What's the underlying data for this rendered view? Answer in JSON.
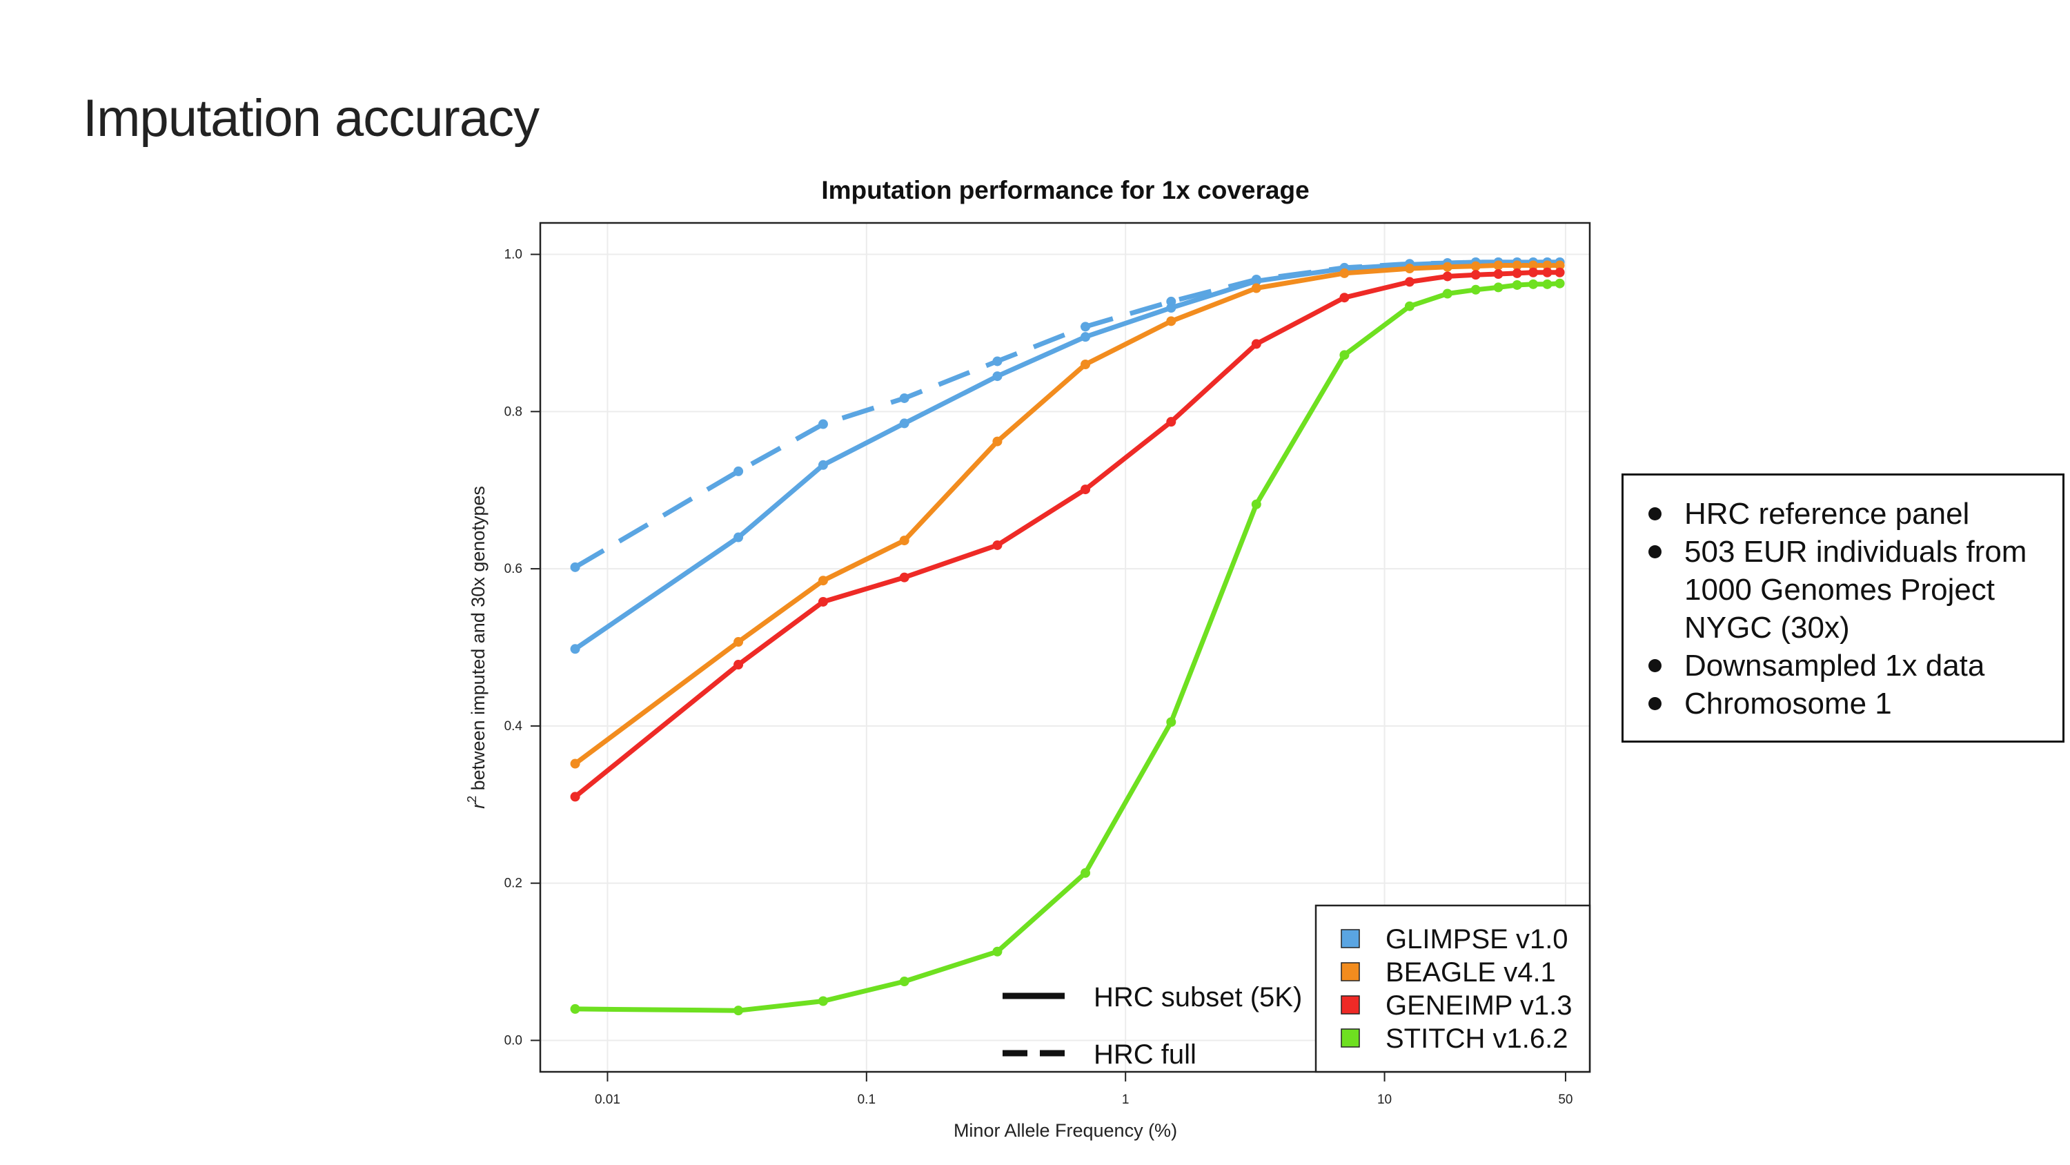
{
  "slide": {
    "title": "Imputation accuracy"
  },
  "info_box": {
    "items": [
      "HRC reference panel",
      "503 EUR individuals from 1000 Genomes Project NYGC (30x)",
      "Downsampled 1x data",
      "Chromosome 1"
    ]
  },
  "chart_data": {
    "type": "line",
    "title": "Imputation performance for 1x coverage",
    "xlabel": "Minor Allele Frequency (%)",
    "ylabel_prefix": "r",
    "ylabel_superscript": "2",
    "ylabel": " between imputed and 30x genotypes",
    "x_scale": "log",
    "xlim": [
      0.0055,
      62
    ],
    "ylim": [
      -0.04,
      1.04
    ],
    "x_ticks": [
      0.01,
      0.1,
      1,
      10,
      50
    ],
    "x_tick_labels": [
      "0.01",
      "0.1",
      "1",
      "10",
      "50"
    ],
    "y_ticks": [
      0,
      0.2,
      0.4,
      0.6,
      0.8,
      1.0
    ],
    "y_tick_labels": [
      "0.0",
      "0.2",
      "0.4",
      "0.6",
      "0.8",
      "1.0"
    ],
    "grid": true,
    "x": [
      0.0075,
      0.032,
      0.068,
      0.14,
      0.32,
      0.7,
      1.5,
      3.2,
      7,
      12.5,
      17.5,
      22.5,
      27.5,
      32.5,
      37.5,
      42.5,
      47.5
    ],
    "series": [
      {
        "name": "GLIMPSE v1.0",
        "panel": "HRC subset (5K)",
        "color": "#5aa5e2",
        "dash": false,
        "values": [
          0.498,
          0.64,
          0.732,
          0.785,
          0.845,
          0.895,
          0.932,
          0.966,
          0.982,
          0.987,
          0.989,
          0.99,
          0.99,
          0.99,
          0.99,
          0.99,
          0.99
        ]
      },
      {
        "name": "GLIMPSE v1.0",
        "panel": "HRC full",
        "color": "#5aa5e2",
        "dash": true,
        "values": [
          0.602,
          0.724,
          0.784,
          0.817,
          0.864,
          0.908,
          0.94,
          0.968,
          0.983,
          0.988,
          0.989,
          0.99,
          0.99,
          0.99,
          0.99,
          0.99,
          0.99
        ]
      },
      {
        "name": "BEAGLE v4.1",
        "panel": "HRC subset (5K)",
        "color": "#f28c1e",
        "dash": false,
        "values": [
          0.352,
          0.507,
          0.585,
          0.636,
          0.762,
          0.86,
          0.915,
          0.957,
          0.976,
          0.982,
          0.984,
          0.985,
          0.986,
          0.986,
          0.986,
          0.986,
          0.986
        ]
      },
      {
        "name": "GENEIMP v1.3",
        "panel": "HRC subset (5K)",
        "color": "#ee2a26",
        "dash": false,
        "values": [
          0.31,
          0.478,
          0.558,
          0.589,
          0.63,
          0.701,
          0.787,
          0.886,
          0.945,
          0.965,
          0.972,
          0.974,
          0.975,
          0.976,
          0.977,
          0.977,
          0.977
        ]
      },
      {
        "name": "STITCH v1.6.2",
        "panel": "HRC subset (5K)",
        "color": "#6ee020",
        "dash": false,
        "values": [
          0.04,
          0.038,
          0.05,
          0.075,
          0.113,
          0.213,
          0.405,
          0.682,
          0.872,
          0.934,
          0.95,
          0.955,
          0.958,
          0.961,
          0.962,
          0.962,
          0.963
        ]
      }
    ],
    "legend": {
      "placement": "bottom-right",
      "methods": [
        {
          "label": "GLIMPSE v1.0",
          "color": "#5aa5e2"
        },
        {
          "label": "BEAGLE v4.1",
          "color": "#f28c1e"
        },
        {
          "label": "GENEIMP v1.3",
          "color": "#ee2a26"
        },
        {
          "label": "STITCH v1.6.2",
          "color": "#6ee020"
        }
      ],
      "panels": [
        {
          "label": "HRC subset (5K)",
          "dash": false
        },
        {
          "label": "HRC full",
          "dash": true
        }
      ]
    }
  }
}
